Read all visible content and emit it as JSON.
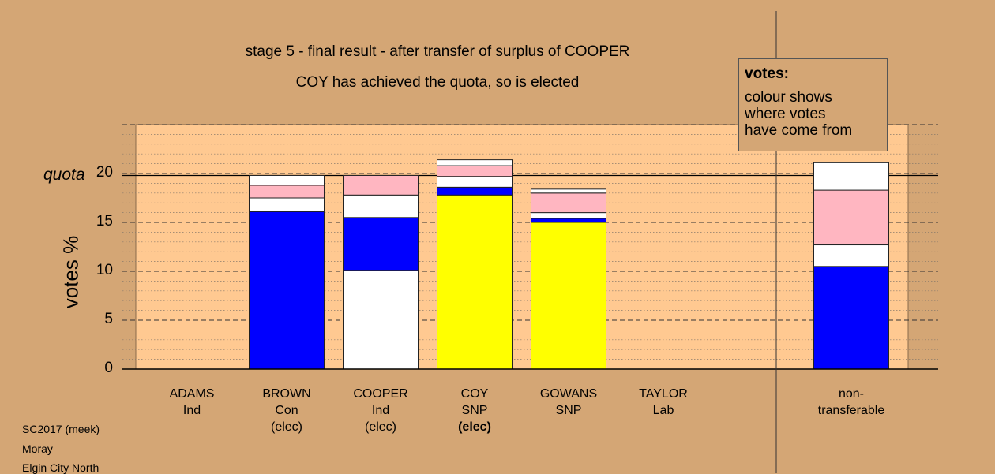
{
  "title_line1": "stage 5 - final result - after transfer of surplus of COOPER",
  "title_line2": "COY has achieved the quota, so is elected",
  "legend": {
    "heading": "votes:",
    "lines": [
      "colour shows",
      "where votes",
      "have come from"
    ]
  },
  "footer": [
    "SC2017 (meek)",
    "Moray",
    "Elgin City North"
  ],
  "chart_data": {
    "type": "bar",
    "stacked": true,
    "ylabel": "votes %",
    "ylim": [
      0,
      20
    ],
    "yticks": [
      0,
      5,
      10,
      15,
      20
    ],
    "quota": {
      "label": "quota",
      "value": 19.8
    },
    "grid": "dashed horizontal at major ticks, dotted minor",
    "legend_placement": "top-right",
    "colors": {
      "con": "#0000ff",
      "ind": "#ffffff",
      "snp": "#ffff00",
      "lab": "#ffb6c1"
    },
    "categories": [
      {
        "lines": [
          "ADAMS",
          "Ind"
        ],
        "segments": []
      },
      {
        "lines": [
          "BROWN",
          "Con",
          "(elec)"
        ],
        "segments": [
          {
            "color": "con",
            "value": 16.1
          },
          {
            "color": "ind",
            "value": 1.4
          },
          {
            "color": "lab",
            "value": 1.3
          },
          {
            "color": "ind",
            "value": 1.0
          }
        ]
      },
      {
        "lines": [
          "COOPER",
          "Ind",
          "(elec)"
        ],
        "segments": [
          {
            "color": "ind",
            "value": 10.1
          },
          {
            "color": "con",
            "value": 5.4
          },
          {
            "color": "ind",
            "value": 2.3
          },
          {
            "color": "lab",
            "value": 2.0
          }
        ]
      },
      {
        "lines": [
          "COY",
          "SNP",
          "(elec)"
        ],
        "bold_last": true,
        "segments": [
          {
            "color": "snp",
            "value": 17.8
          },
          {
            "color": "con",
            "value": 0.8
          },
          {
            "color": "ind",
            "value": 1.1
          },
          {
            "color": "lab",
            "value": 1.1
          },
          {
            "color": "ind",
            "value": 0.6
          }
        ]
      },
      {
        "lines": [
          "GOWANS",
          "SNP"
        ],
        "segments": [
          {
            "color": "snp",
            "value": 15.0
          },
          {
            "color": "con",
            "value": 0.4
          },
          {
            "color": "ind",
            "value": 0.6
          },
          {
            "color": "lab",
            "value": 2.0
          },
          {
            "color": "ind",
            "value": 0.4
          }
        ]
      },
      {
        "lines": [
          "TAYLOR",
          "Lab"
        ],
        "segments": []
      },
      {
        "lines": [
          "non-",
          "transferable"
        ],
        "segments": [
          {
            "color": "con",
            "value": 10.5
          },
          {
            "color": "ind",
            "value": 2.2
          },
          {
            "color": "lab",
            "value": 5.6
          },
          {
            "color": "ind",
            "value": 2.8
          }
        ]
      }
    ]
  }
}
